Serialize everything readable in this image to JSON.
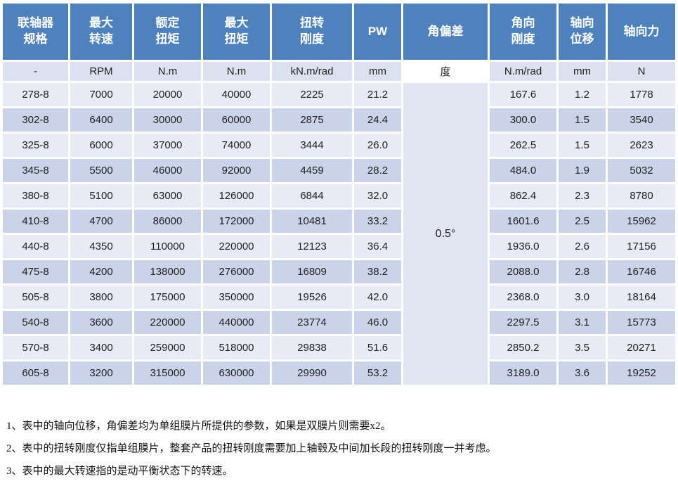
{
  "colors": {
    "header_bg": "#4f81bd",
    "header_text": "#ffffff",
    "row_light": "#e8ebf4",
    "row_dark": "#cbd3e8",
    "units_bg": "#dce1ef",
    "merged_bg": "#e2e6f2"
  },
  "table": {
    "columns": [
      {
        "header": "联轴器\n规格",
        "unit": "-"
      },
      {
        "header": "最大\n转速",
        "unit": "RPM"
      },
      {
        "header": "额定\n扭矩",
        "unit": "N.m"
      },
      {
        "header": "最大\n扭矩",
        "unit": "N.m"
      },
      {
        "header": "扭转\n刚度",
        "unit": "kN.m/rad"
      },
      {
        "header": "PW",
        "unit": "mm"
      },
      {
        "header": "角偏差",
        "unit": "度"
      },
      {
        "header": "角向\n刚度",
        "unit": "N.m/rad"
      },
      {
        "header": "轴向\n位移",
        "unit": "mm"
      },
      {
        "header": "轴向力",
        "unit": "N"
      }
    ],
    "angular_deviation_value": "0.5°",
    "rows": [
      [
        "278-8",
        "7000",
        "20000",
        "40000",
        "2225",
        "21.2",
        "167.6",
        "1.2",
        "1778"
      ],
      [
        "302-8",
        "6400",
        "30000",
        "60000",
        "2875",
        "24.4",
        "300.0",
        "1.5",
        "3540"
      ],
      [
        "325-8",
        "6000",
        "37000",
        "74000",
        "3444",
        "26.0",
        "262.5",
        "1.5",
        "2623"
      ],
      [
        "345-8",
        "5500",
        "46000",
        "92000",
        "4459",
        "28.2",
        "484.0",
        "1.9",
        "5032"
      ],
      [
        "380-8",
        "5100",
        "63000",
        "126000",
        "6844",
        "32.0",
        "862.4",
        "2.3",
        "8780"
      ],
      [
        "410-8",
        "4700",
        "86000",
        "172000",
        "10481",
        "33.2",
        "1601.6",
        "2.5",
        "15962"
      ],
      [
        "440-8",
        "4350",
        "110000",
        "220000",
        "12123",
        "36.4",
        "1936.0",
        "2.6",
        "17156"
      ],
      [
        "475-8",
        "4200",
        "138000",
        "276000",
        "16809",
        "38.2",
        "2088.0",
        "2.8",
        "16746"
      ],
      [
        "505-8",
        "3800",
        "175000",
        "350000",
        "19526",
        "42.0",
        "2368.0",
        "3.0",
        "18164"
      ],
      [
        "540-8",
        "3600",
        "220000",
        "440000",
        "23774",
        "46.0",
        "2297.5",
        "3.1",
        "15773"
      ],
      [
        "570-8",
        "3400",
        "259000",
        "518000",
        "29838",
        "51.6",
        "2850.2",
        "3.5",
        "20271"
      ],
      [
        "605-8",
        "3200",
        "315000",
        "630000",
        "29990",
        "53.2",
        "3189.0",
        "3.6",
        "19252"
      ]
    ]
  },
  "notes": [
    "1、表中的轴向位移，角偏差均为单组膜片所提供的参数，如果是双膜片则需要x2。",
    "2、表中的扭转刚度仅指单组膜片，整套产品的扭转刚度需要加上轴毂及中间加长段的扭转刚度一并考虑。",
    "3、表中的最大转速指的是动平衡状态下的转速。"
  ]
}
